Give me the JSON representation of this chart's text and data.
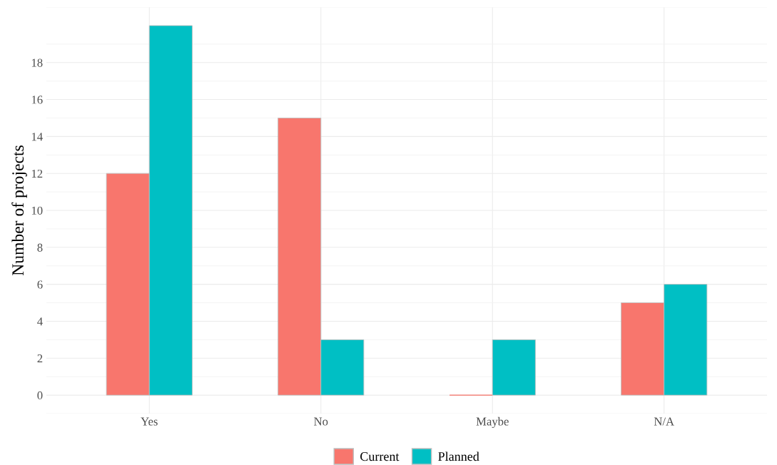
{
  "chart_data": {
    "type": "bar",
    "ylabel": "Number of projects",
    "categories": [
      "Yes",
      "No",
      "Maybe",
      "N/A"
    ],
    "series": [
      {
        "name": "Current",
        "color": "#f8766d",
        "values": [
          12,
          15,
          0,
          5
        ]
      },
      {
        "name": "Planned",
        "color": "#00bfc4",
        "values": [
          20,
          3,
          3,
          6
        ]
      }
    ],
    "ylim": [
      -1,
      21
    ],
    "yticks": [
      0,
      2,
      4,
      6,
      8,
      10,
      12,
      14,
      16,
      18
    ],
    "grid": true,
    "legend": "bottom"
  }
}
